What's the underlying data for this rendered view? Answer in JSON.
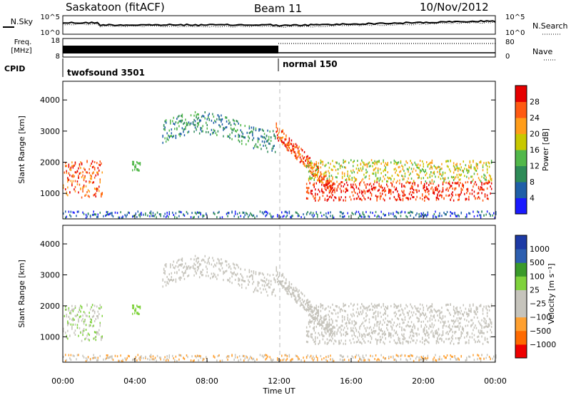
{
  "header": {
    "station": "Saskatoon (fitACF)",
    "beam": "Beam 11",
    "date": "10/Nov/2012"
  },
  "colors": {
    "power_scale": [
      "#1a1aff",
      "#1f5fa8",
      "#2e8b57",
      "#52b84a",
      "#c8c800",
      "#ff9d1a",
      "#ff5a12",
      "#e60000"
    ],
    "velocity_scale": [
      "#ee0000",
      "#ff6a00",
      "#ffa030",
      "#c6c4bc",
      "#c6c4bc",
      "#7fd23c",
      "#3a9a2a",
      "#2d5fb0",
      "#1d3aa5"
    ],
    "ground_scatter": "#c6c4bc"
  },
  "chart_data": [
    {
      "type": "line",
      "panel": "noise-frequency",
      "labels": {
        "nsky": "N.Sky",
        "nsearch": "N.Search",
        "freq_top": "Freq.",
        "freq_unit": "[MHz]",
        "nave": "Nave",
        "cpid": "CPID"
      },
      "noise_ticks": [
        "10^5",
        "10^0"
      ],
      "freq_ticks": [
        "18",
        "8"
      ],
      "nave_ticks": [
        "80",
        "0"
      ],
      "cpid_segments": [
        {
          "label": "twofsound 3501",
          "start_hour": 0,
          "end_hour": 12
        },
        {
          "label": "normal 150",
          "start_hour": 12,
          "end_hour": 24
        }
      ]
    },
    {
      "type": "heatmap",
      "panel": "power",
      "ylabel": "Slant Range [km]",
      "xlabel": "Time UT",
      "xlim": [
        0,
        24
      ],
      "ylim": [
        180,
        4600
      ],
      "x_ticks": [
        "00:00",
        "04:00",
        "08:00",
        "12:00",
        "16:00",
        "20:00",
        "00:00"
      ],
      "y_ticks": [
        1000,
        2000,
        3000,
        4000
      ],
      "colorbar_label": "Power [dB]",
      "colorbar_ticks": [
        "4",
        "8",
        "12",
        "16",
        "20",
        "24",
        "28"
      ],
      "echo_regions": [
        {
          "start_hour": 0.0,
          "end_hour": 2.2,
          "range_km": [
            800,
            2100
          ],
          "level": "high"
        },
        {
          "start_hour": 3.8,
          "end_hour": 4.3,
          "range_km": [
            1750,
            2050
          ],
          "level": "medium"
        },
        {
          "start_hour": 5.5,
          "end_hour": 11.8,
          "range_km": [
            2400,
            3500
          ],
          "level": "medium"
        },
        {
          "start_hour": 13.5,
          "end_hour": 23.8,
          "range_km": [
            800,
            2100
          ],
          "level": "high"
        }
      ]
    },
    {
      "type": "heatmap",
      "panel": "velocity",
      "ylabel": "Slant Range [km]",
      "xlabel": "Time UT",
      "xlim": [
        0,
        24
      ],
      "ylim": [
        180,
        4600
      ],
      "x_ticks": [
        "00:00",
        "04:00",
        "08:00",
        "12:00",
        "16:00",
        "20:00",
        "00:00"
      ],
      "y_ticks": [
        1000,
        2000,
        3000,
        4000
      ],
      "colorbar_label": "Velocity [m s⁻¹]",
      "colorbar_ticks": [
        "1000",
        "500",
        "100",
        "25",
        "−25",
        "−100",
        "−500",
        "−1000"
      ]
    }
  ]
}
